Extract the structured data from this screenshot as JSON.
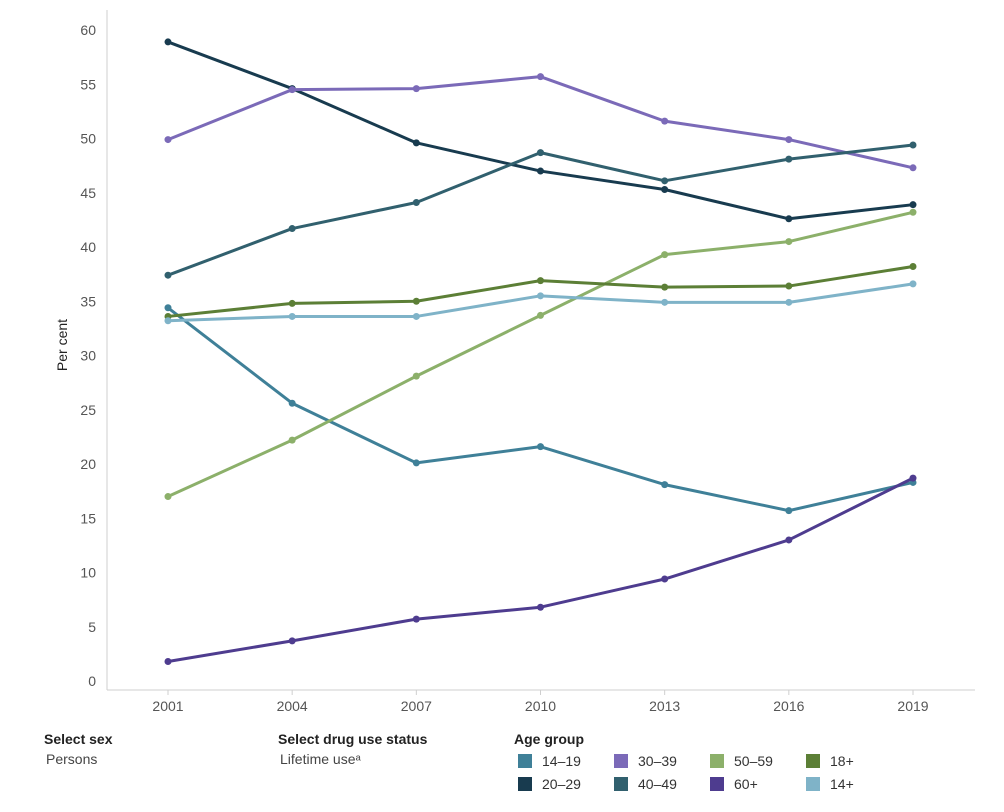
{
  "chart_data": {
    "type": "line",
    "x": [
      "2001",
      "2004",
      "2007",
      "2010",
      "2013",
      "2016",
      "2019"
    ],
    "ylabel": "Per cent",
    "ylim": [
      0,
      60
    ],
    "yticks": [
      0,
      5,
      10,
      15,
      20,
      25,
      30,
      35,
      40,
      45,
      50,
      55,
      60
    ],
    "grid": false,
    "series": [
      {
        "name": "14–19",
        "color": "#3f8098",
        "values": [
          34.4,
          25.6,
          20.1,
          21.6,
          18.1,
          15.7,
          18.3
        ]
      },
      {
        "name": "20–29",
        "color": "#183b4f",
        "values": [
          58.9,
          54.6,
          49.6,
          47.0,
          45.3,
          42.6,
          43.9
        ]
      },
      {
        "name": "30–39",
        "color": "#7b6ab8",
        "values": [
          49.9,
          54.5,
          54.6,
          55.7,
          51.6,
          49.9,
          47.3
        ]
      },
      {
        "name": "40–49",
        "color": "#31606e",
        "values": [
          37.4,
          41.7,
          44.1,
          48.7,
          46.1,
          48.1,
          49.4
        ]
      },
      {
        "name": "50–59",
        "color": "#8cb06a",
        "values": [
          17.0,
          22.2,
          28.1,
          33.7,
          39.3,
          40.5,
          43.2
        ]
      },
      {
        "name": "60+",
        "color": "#4e3c8f",
        "values": [
          1.8,
          3.7,
          5.7,
          6.8,
          9.4,
          13.0,
          18.7
        ]
      },
      {
        "name": "18+",
        "color": "#5c7f36",
        "values": [
          33.6,
          34.8,
          35.0,
          36.9,
          36.3,
          36.4,
          38.2
        ]
      },
      {
        "name": "14+",
        "color": "#7fb3c8",
        "values": [
          33.2,
          33.6,
          33.6,
          35.5,
          34.9,
          34.9,
          36.6
        ]
      }
    ]
  },
  "filters": {
    "sex": {
      "label": "Select sex",
      "value": "Persons"
    },
    "drug_use": {
      "label": "Select drug use status",
      "value": "Lifetime useᵃ"
    }
  },
  "legend": {
    "title": "Age group",
    "items": [
      "14–19",
      "20–29",
      "30–39",
      "40–49",
      "50–59",
      "60+",
      "18+",
      "14+"
    ]
  }
}
